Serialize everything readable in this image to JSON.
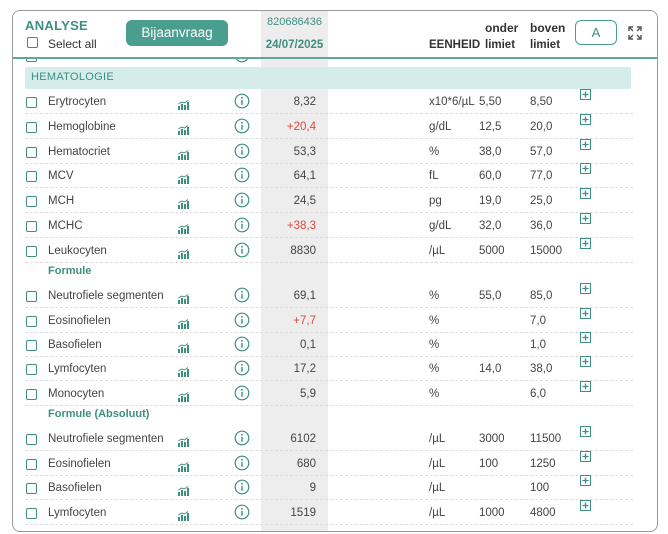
{
  "header": {
    "title": "ANALYSE",
    "select_all": "Select all",
    "bijaanvraag": "Bijaanvraag",
    "sample_id": "820686436",
    "sample_date": "24/07/2025",
    "unit_header": "EENHEID",
    "lower_top": "onder",
    "lower_bottom": "limiet",
    "upper_top": "boven",
    "upper_bottom": "limiet",
    "a_button": "A"
  },
  "section": {
    "label": "HEMATOLOGIE"
  },
  "subsections": {
    "formule": "Formule",
    "formule_abs": "Formule (Absoluut)"
  },
  "rows": [
    {
      "name": "Erytrocyten",
      "value": "8,32",
      "high": false,
      "unit": "x10*6/µL",
      "lower": "5,50",
      "upper": "8,50"
    },
    {
      "name": "Hemoglobine",
      "value": "+20,4",
      "high": true,
      "unit": "g/dL",
      "lower": "12,5",
      "upper": "20,0"
    },
    {
      "name": "Hematocriet",
      "value": "53,3",
      "high": false,
      "unit": "%",
      "lower": "38,0",
      "upper": "57,0"
    },
    {
      "name": "MCV",
      "value": "64,1",
      "high": false,
      "unit": "fL",
      "lower": "60,0",
      "upper": "77,0"
    },
    {
      "name": "MCH",
      "value": "24,5",
      "high": false,
      "unit": "pg",
      "lower": "19,0",
      "upper": "25,0"
    },
    {
      "name": "MCHC",
      "value": "+38,3",
      "high": true,
      "unit": "g/dL",
      "lower": "32,0",
      "upper": "36,0"
    },
    {
      "name": "Leukocyten",
      "value": "8830",
      "high": false,
      "unit": "/µL",
      "lower": "5000",
      "upper": "15000"
    },
    {
      "name": "Neutrofiele segmenten",
      "value": "69,1",
      "high": false,
      "unit": "%",
      "lower": "55,0",
      "upper": "85,0"
    },
    {
      "name": "Eosinofielen",
      "value": "+7,7",
      "high": true,
      "unit": "%",
      "lower": "",
      "upper": "7,0"
    },
    {
      "name": "Basofielen",
      "value": "0,1",
      "high": false,
      "unit": "%",
      "lower": "",
      "upper": "1,0"
    },
    {
      "name": "Lymfocyten",
      "value": "17,2",
      "high": false,
      "unit": "%",
      "lower": "14,0",
      "upper": "38,0"
    },
    {
      "name": "Monocyten",
      "value": "5,9",
      "high": false,
      "unit": "%",
      "lower": "",
      "upper": "6,0"
    },
    {
      "name": "Neutrofiele segmenten",
      "value": "6102",
      "high": false,
      "unit": "/µL",
      "lower": "3000",
      "upper": "11500"
    },
    {
      "name": "Eosinofielen",
      "value": "680",
      "high": false,
      "unit": "/µL",
      "lower": "100",
      "upper": "1250"
    },
    {
      "name": "Basofielen",
      "value": "9",
      "high": false,
      "unit": "/µL",
      "lower": "",
      "upper": "100"
    },
    {
      "name": "Lymfocyten",
      "value": "1519",
      "high": false,
      "unit": "/µL",
      "lower": "1000",
      "upper": "4800"
    }
  ],
  "colors": {
    "accent": "#3d8f82",
    "button": "#4a9e90",
    "section_bg": "#d4edea",
    "high": "#e0463c"
  }
}
